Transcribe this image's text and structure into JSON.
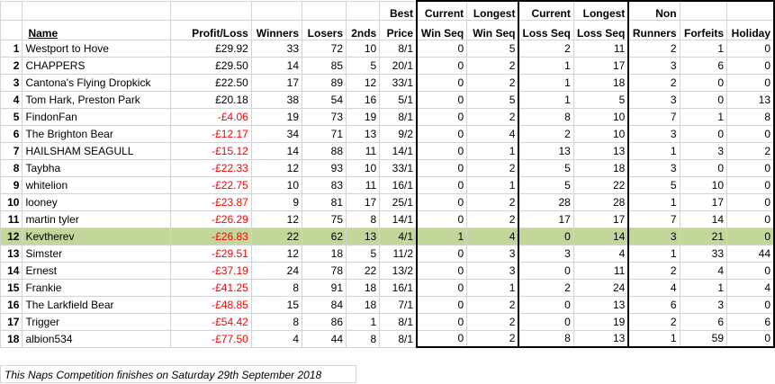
{
  "headers": {
    "name": "Name",
    "profit_loss": "Profit/Loss",
    "winners": "Winners",
    "losers": "Losers",
    "seconds": "2nds",
    "best_price_1": "Best",
    "best_price_2": "Price",
    "cur_win_1": "Current",
    "cur_win_2": "Win Seq",
    "long_win_1": "Longest",
    "long_win_2": "Win Seq",
    "cur_loss_1": "Current",
    "cur_loss_2": "Loss Seq",
    "long_loss_1": "Longest",
    "long_loss_2": "Loss Seq",
    "non_runners_1": "Non",
    "non_runners_2": "Runners",
    "forfeits": "Forfeits",
    "holiday": "Holiday"
  },
  "rows": [
    {
      "rank": "1",
      "name": "Westport to Hove",
      "pl": "£29.92",
      "neg": false,
      "winners": "33",
      "losers": "72",
      "seconds": "10",
      "best": "8/1",
      "cur_win": "0",
      "long_win": "5",
      "cur_loss": "2",
      "long_loss": "11",
      "nr": "2",
      "forfeits": "1",
      "holiday": "0"
    },
    {
      "rank": "2",
      "name": "CHAPPERS",
      "pl": "£29.50",
      "neg": false,
      "winners": "14",
      "losers": "85",
      "seconds": "5",
      "best": "20/1",
      "cur_win": "0",
      "long_win": "2",
      "cur_loss": "1",
      "long_loss": "17",
      "nr": "3",
      "forfeits": "6",
      "holiday": "0"
    },
    {
      "rank": "3",
      "name": "Cantona's Flying Dropkick",
      "pl": "£22.50",
      "neg": false,
      "winners": "17",
      "losers": "89",
      "seconds": "12",
      "best": "33/1",
      "cur_win": "0",
      "long_win": "2",
      "cur_loss": "1",
      "long_loss": "18",
      "nr": "2",
      "forfeits": "0",
      "holiday": "0"
    },
    {
      "rank": "4",
      "name": "Tom Hark, Preston Park",
      "pl": "£20.18",
      "neg": false,
      "winners": "38",
      "losers": "54",
      "seconds": "16",
      "best": "5/1",
      "cur_win": "0",
      "long_win": "5",
      "cur_loss": "1",
      "long_loss": "5",
      "nr": "3",
      "forfeits": "0",
      "holiday": "13"
    },
    {
      "rank": "5",
      "name": "FindonFan",
      "pl": "-£4.06",
      "neg": true,
      "winners": "19",
      "losers": "73",
      "seconds": "19",
      "best": "8/1",
      "cur_win": "0",
      "long_win": "2",
      "cur_loss": "8",
      "long_loss": "10",
      "nr": "7",
      "forfeits": "1",
      "holiday": "8"
    },
    {
      "rank": "6",
      "name": "The Brighton Bear",
      "pl": "-£12.17",
      "neg": true,
      "winners": "34",
      "losers": "71",
      "seconds": "13",
      "best": "9/2",
      "cur_win": "0",
      "long_win": "4",
      "cur_loss": "2",
      "long_loss": "10",
      "nr": "3",
      "forfeits": "0",
      "holiday": "0"
    },
    {
      "rank": "7",
      "name": "HAILSHAM SEAGULL",
      "pl": "-£15.12",
      "neg": true,
      "winners": "14",
      "losers": "88",
      "seconds": "11",
      "best": "14/1",
      "cur_win": "0",
      "long_win": "1",
      "cur_loss": "13",
      "long_loss": "13",
      "nr": "1",
      "forfeits": "3",
      "holiday": "2"
    },
    {
      "rank": "8",
      "name": "Taybha",
      "pl": "-£22.33",
      "neg": true,
      "winners": "12",
      "losers": "93",
      "seconds": "10",
      "best": "33/1",
      "cur_win": "0",
      "long_win": "2",
      "cur_loss": "5",
      "long_loss": "18",
      "nr": "3",
      "forfeits": "0",
      "holiday": "0"
    },
    {
      "rank": "9",
      "name": "whitelion",
      "pl": "-£22.75",
      "neg": true,
      "winners": "10",
      "losers": "83",
      "seconds": "11",
      "best": "16/1",
      "cur_win": "0",
      "long_win": "1",
      "cur_loss": "5",
      "long_loss": "22",
      "nr": "5",
      "forfeits": "10",
      "holiday": "0"
    },
    {
      "rank": "10",
      "name": "looney",
      "pl": "-£23.87",
      "neg": true,
      "winners": "9",
      "losers": "81",
      "seconds": "17",
      "best": "25/1",
      "cur_win": "0",
      "long_win": "2",
      "cur_loss": "28",
      "long_loss": "28",
      "nr": "1",
      "forfeits": "17",
      "holiday": "0"
    },
    {
      "rank": "11",
      "name": "martin tyler",
      "pl": "-£26.29",
      "neg": true,
      "winners": "12",
      "losers": "75",
      "seconds": "8",
      "best": "14/1",
      "cur_win": "0",
      "long_win": "2",
      "cur_loss": "17",
      "long_loss": "17",
      "nr": "7",
      "forfeits": "14",
      "holiday": "0"
    },
    {
      "rank": "12",
      "name": "Kevtherev",
      "pl": "-£26.83",
      "neg": true,
      "winners": "22",
      "losers": "62",
      "seconds": "13",
      "best": "4/1",
      "cur_win": "1",
      "long_win": "4",
      "cur_loss": "0",
      "long_loss": "14",
      "nr": "3",
      "forfeits": "21",
      "holiday": "0",
      "highlight": true
    },
    {
      "rank": "13",
      "name": "Simster",
      "pl": "-£29.51",
      "neg": true,
      "winners": "12",
      "losers": "18",
      "seconds": "5",
      "best": "11/2",
      "cur_win": "0",
      "long_win": "3",
      "cur_loss": "3",
      "long_loss": "4",
      "nr": "1",
      "forfeits": "33",
      "holiday": "44"
    },
    {
      "rank": "14",
      "name": "Ernest",
      "pl": "-£37.19",
      "neg": true,
      "winners": "24",
      "losers": "78",
      "seconds": "22",
      "best": "13/2",
      "cur_win": "0",
      "long_win": "3",
      "cur_loss": "0",
      "long_loss": "11",
      "nr": "2",
      "forfeits": "4",
      "holiday": "0"
    },
    {
      "rank": "15",
      "name": "Frankie",
      "pl": "-£41.25",
      "neg": true,
      "winners": "8",
      "losers": "91",
      "seconds": "18",
      "best": "16/1",
      "cur_win": "0",
      "long_win": "1",
      "cur_loss": "2",
      "long_loss": "24",
      "nr": "4",
      "forfeits": "1",
      "holiday": "4"
    },
    {
      "rank": "16",
      "name": "The Larkfield Bear",
      "pl": "-£48.85",
      "neg": true,
      "winners": "15",
      "losers": "84",
      "seconds": "18",
      "best": "7/1",
      "cur_win": "0",
      "long_win": "2",
      "cur_loss": "0",
      "long_loss": "13",
      "nr": "6",
      "forfeits": "3",
      "holiday": "0"
    },
    {
      "rank": "17",
      "name": "Trigger",
      "pl": "-£54.42",
      "neg": true,
      "winners": "8",
      "losers": "86",
      "seconds": "1",
      "best": "8/1",
      "cur_win": "0",
      "long_win": "2",
      "cur_loss": "0",
      "long_loss": "19",
      "nr": "2",
      "forfeits": "6",
      "holiday": "6"
    },
    {
      "rank": "18",
      "name": "albion534",
      "pl": "-£77.50",
      "neg": true,
      "winners": "4",
      "losers": "44",
      "seconds": "8",
      "best": "8/1",
      "cur_win": "0",
      "long_win": "2",
      "cur_loss": "8",
      "long_loss": "13",
      "nr": "1",
      "forfeits": "59",
      "holiday": "0"
    }
  ],
  "footer": "This Naps Competition finishes on Saturday 29th September 2018",
  "colors": {
    "highlight_row": "#c4d79b",
    "negative_text": "#ff0000",
    "gridline": "#d4d4d4",
    "box_border": "#000000"
  }
}
